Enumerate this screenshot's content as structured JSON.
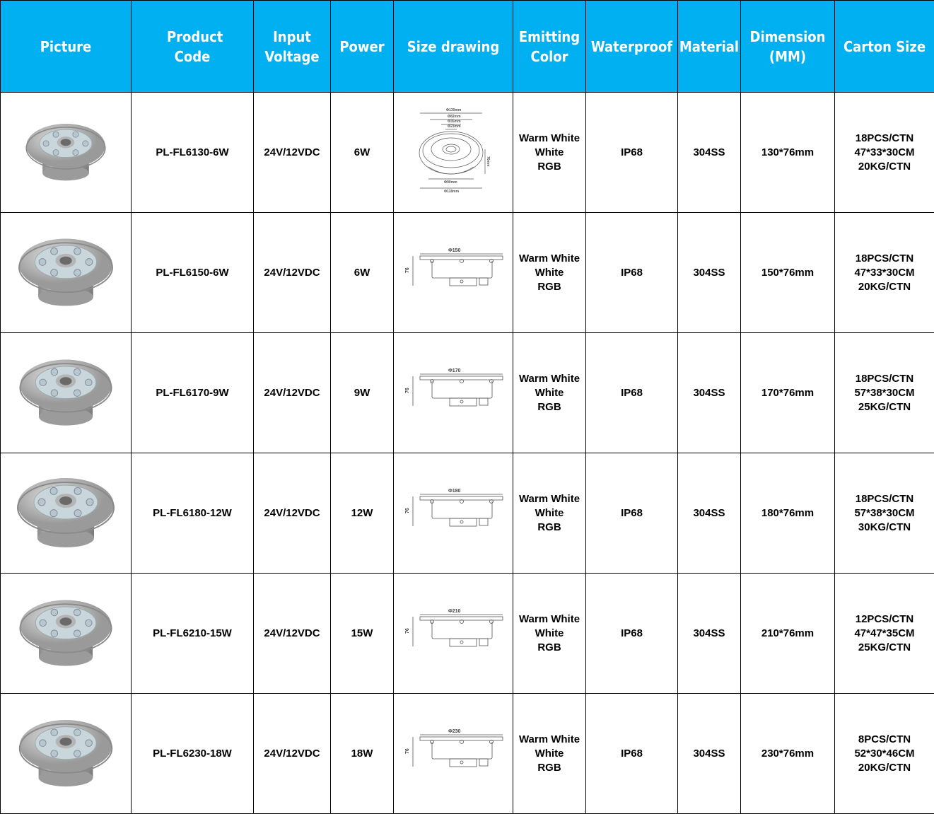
{
  "table": {
    "headers": [
      "Picture",
      "Product Code",
      "Input Voltage",
      "Power",
      "Size drawing",
      "Emitting Color",
      "Waterproof",
      "Material",
      "Dimension (MM)",
      "Carton Size"
    ],
    "colors": {
      "header_bg": "#00b0f0",
      "header_text": "#ffffff",
      "border": "#000000"
    },
    "rows": [
      {
        "picture_icon": "fountain-light-image",
        "code": "PL-FL6130-6W",
        "voltage": "24V/12VDC",
        "power": "6W",
        "drawing": {
          "style": "top-view",
          "labels": [
            "Φ130mm",
            "Φ82mm",
            "Φ35mm",
            "Φ23mm",
            "76mm",
            "Φ90mm",
            "Φ118mm"
          ]
        },
        "color": [
          "Warm White",
          "White",
          "RGB"
        ],
        "waterproof": "IP68",
        "material": "304SS",
        "dimension": "130*76mm",
        "carton": [
          "18PCS/CTN",
          "47*33*30CM",
          "20KG/CTN"
        ]
      },
      {
        "picture_icon": "fountain-light-image",
        "code": "PL-FL6150-6W",
        "voltage": "24V/12VDC",
        "power": "6W",
        "drawing": {
          "style": "side-view",
          "labels": [
            "Φ150",
            "76"
          ]
        },
        "color": [
          "Warm White",
          "White",
          "RGB"
        ],
        "waterproof": "IP68",
        "material": "304SS",
        "dimension": "150*76mm",
        "carton": [
          "18PCS/CTN",
          "47*33*30CM",
          "20KG/CTN"
        ]
      },
      {
        "picture_icon": "fountain-light-image",
        "code": "PL-FL6170-9W",
        "voltage": "24V/12VDC",
        "power": "9W",
        "drawing": {
          "style": "side-view",
          "labels": [
            "Φ170",
            "76"
          ]
        },
        "color": [
          "Warm White",
          "White",
          "RGB"
        ],
        "waterproof": "IP68",
        "material": "304SS",
        "dimension": "170*76mm",
        "carton": [
          "18PCS/CTN",
          "57*38*30CM",
          "25KG/CTN"
        ]
      },
      {
        "picture_icon": "fountain-light-image",
        "code": "PL-FL6180-12W",
        "voltage": "24V/12VDC",
        "power": "12W",
        "drawing": {
          "style": "side-view",
          "labels": [
            "Φ180",
            "76"
          ]
        },
        "color": [
          "Warm White",
          "White",
          "RGB"
        ],
        "waterproof": "IP68",
        "material": "304SS",
        "dimension": "180*76mm",
        "carton": [
          "18PCS/CTN",
          "57*38*30CM",
          "30KG/CTN"
        ]
      },
      {
        "picture_icon": "fountain-light-image",
        "code": "PL-FL6210-15W",
        "voltage": "24V/12VDC",
        "power": "15W",
        "drawing": {
          "style": "side-view",
          "labels": [
            "Φ210",
            "76"
          ]
        },
        "color": [
          "Warm White",
          "White",
          "RGB"
        ],
        "waterproof": "IP68",
        "material": "304SS",
        "dimension": "210*76mm",
        "carton": [
          "12PCS/CTN",
          "47*47*35CM",
          "25KG/CTN"
        ]
      },
      {
        "picture_icon": "fountain-light-image",
        "code": "PL-FL6230-18W",
        "voltage": "24V/12VDC",
        "power": "18W",
        "drawing": {
          "style": "side-view",
          "labels": [
            "Φ230",
            "76"
          ]
        },
        "color": [
          "Warm White",
          "White",
          "RGB"
        ],
        "waterproof": "IP68",
        "material": "304SS",
        "dimension": "230*76mm",
        "carton": [
          "8PCS/CTN",
          "52*30*46CM",
          "20KG/CTN"
        ]
      }
    ]
  }
}
